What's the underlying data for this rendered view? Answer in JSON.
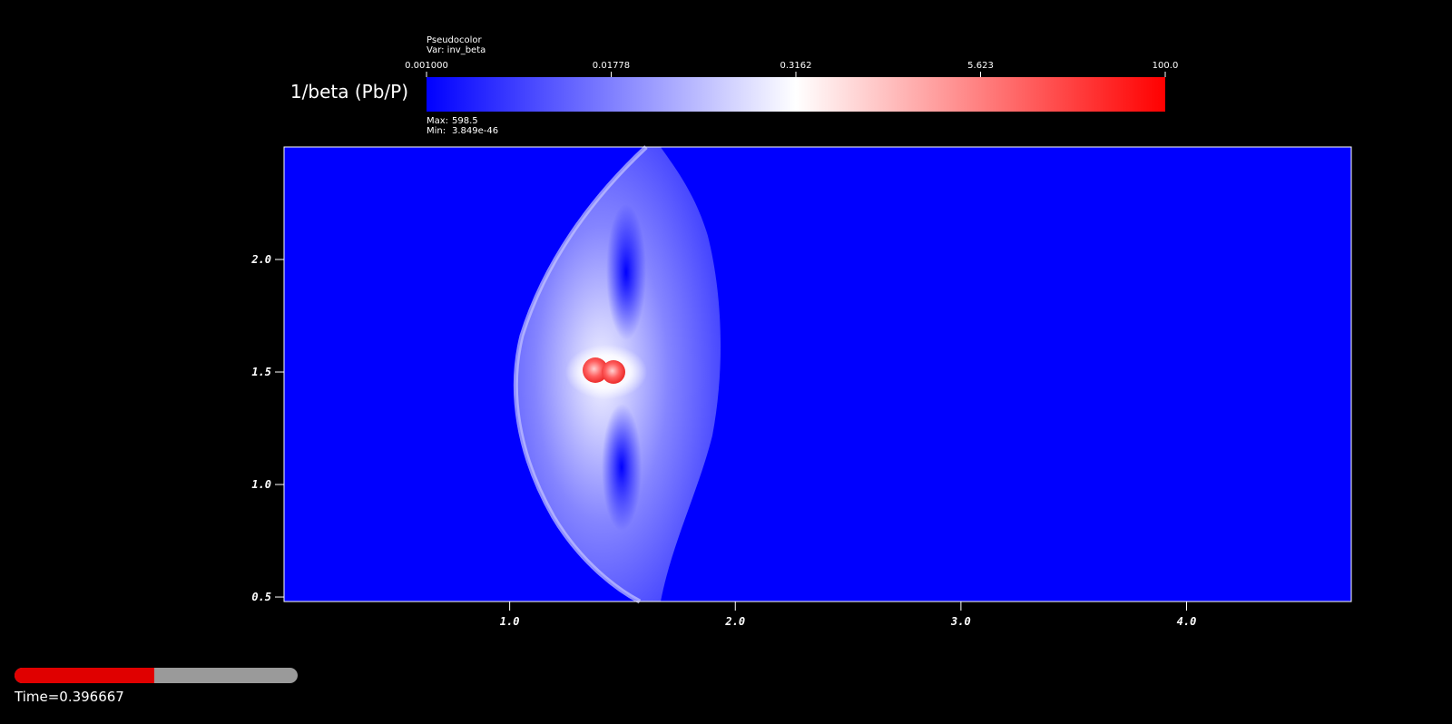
{
  "chart_data": {
    "type": "pseudocolor",
    "title": "1/beta (Pb/P)",
    "plot_name": "Pseudocolor",
    "variable": "Var: inv_beta",
    "max_label": "Max:",
    "max": 598.5,
    "min_label": "Min:",
    "min": 3.849e-46,
    "colors": [
      "#0000ff",
      "#ffffff",
      "#ff0000"
    ],
    "clim": [
      0.001,
      100
    ],
    "log_scale": true,
    "cticks": [
      {
        "value": 0.001,
        "label": "0.001000"
      },
      {
        "value": 0.01778,
        "label": "0.01778"
      },
      {
        "value": 0.3162,
        "label": "0.3162"
      },
      {
        "value": 5.623,
        "label": "5.623"
      },
      {
        "value": 100,
        "label": "100.0"
      }
    ],
    "xlim": [
      0,
      4.73
    ],
    "ylim": [
      0.48,
      2.5
    ],
    "xticks": [
      {
        "value": 1,
        "label": "1.0"
      },
      {
        "value": 2,
        "label": "2.0"
      },
      {
        "value": 3,
        "label": "3.0"
      },
      {
        "value": 4,
        "label": "4.0"
      }
    ],
    "yticks": [
      {
        "value": 0.5,
        "label": "0.5"
      },
      {
        "value": 1,
        "label": "1.0"
      },
      {
        "value": 1.5,
        "label": "1.5"
      },
      {
        "value": 2,
        "label": "2.0"
      }
    ],
    "time_label": "Time=",
    "time": 0.396667
  }
}
